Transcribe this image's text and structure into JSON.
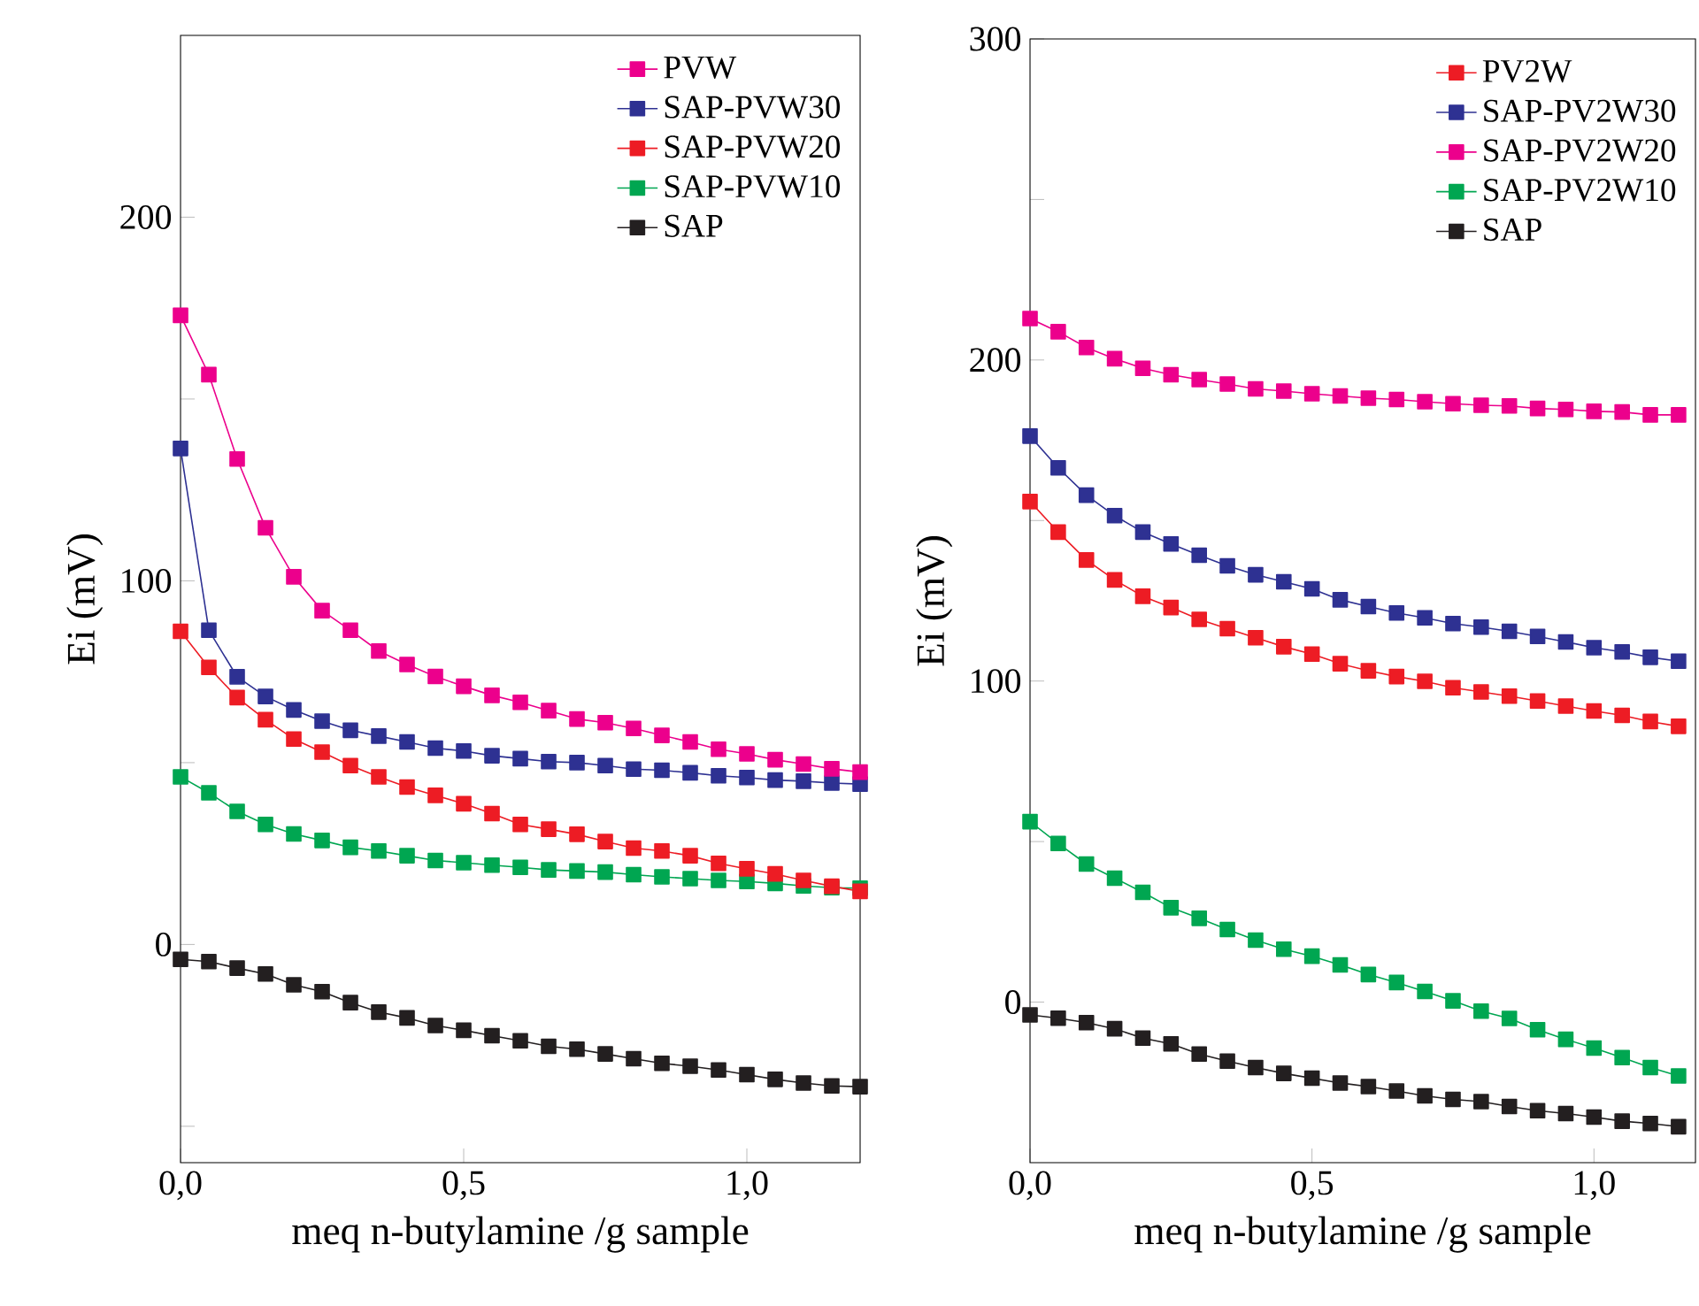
{
  "chart_data": [
    {
      "type": "line",
      "xlabel": "meq n-butylamine /g sample",
      "ylabel": "Ei (mV)",
      "marker": "square",
      "line_style": "solid",
      "legend": "top right",
      "x": [
        0,
        0.05,
        0.1,
        0.15,
        0.2,
        0.25,
        0.3,
        0.35,
        0.4,
        0.45,
        0.5,
        0.55,
        0.6,
        0.65,
        0.7,
        0.75,
        0.8,
        0.85,
        0.9,
        0.95,
        1.0,
        1.05,
        1.1,
        1.15,
        1.2
      ],
      "xlim": [
        0,
        1.2
      ],
      "ylim": [
        -60,
        250
      ],
      "xticks": [
        {
          "value": 0,
          "label": "0,0"
        },
        {
          "value": 0.5,
          "label": "0,5"
        },
        {
          "value": 1.0,
          "label": "1,0"
        }
      ],
      "yticks": [
        {
          "value": -50,
          "label": null
        },
        0,
        {
          "value": 50,
          "label": null
        },
        100,
        {
          "value": 150,
          "label": null
        },
        200
      ],
      "series": [
        {
          "name": "PVW",
          "color": "#ec008c",
          "values": [
            173.0,
            156.7,
            133.5,
            114.6,
            101.1,
            91.8,
            86.4,
            80.7,
            77.0,
            73.7,
            71.0,
            68.5,
            66.6,
            64.3,
            62.0,
            61.0,
            59.4,
            57.5,
            55.7,
            53.7,
            52.4,
            50.8,
            49.6,
            48.3,
            47.4
          ]
        },
        {
          "name": "SAP-PVW30",
          "color": "#2e3192",
          "values": [
            136.4,
            86.4,
            73.6,
            68.2,
            64.5,
            61.4,
            58.9,
            57.3,
            55.7,
            54.0,
            53.2,
            51.9,
            51.1,
            50.3,
            50.0,
            49.2,
            48.2,
            47.9,
            47.2,
            46.4,
            45.9,
            45.2,
            44.9,
            44.4,
            44.1
          ]
        },
        {
          "name": "SAP-PVW20",
          "color": "#ed1c24",
          "values": [
            86.1,
            76.2,
            67.9,
            61.8,
            56.5,
            52.9,
            49.2,
            46.1,
            43.3,
            41.0,
            38.7,
            36.0,
            33.0,
            31.7,
            30.3,
            28.3,
            26.5,
            25.7,
            24.4,
            22.3,
            20.8,
            19.4,
            17.6,
            16.0,
            14.6
          ]
        },
        {
          "name": "SAP-PVW10",
          "color": "#00a651",
          "values": [
            46.1,
            41.7,
            36.6,
            33.0,
            30.4,
            28.6,
            26.7,
            25.7,
            24.4,
            23.1,
            22.5,
            21.8,
            21.2,
            20.5,
            20.2,
            19.9,
            19.2,
            18.6,
            18.1,
            17.6,
            17.3,
            16.8,
            16.1,
            15.6,
            15.5
          ]
        },
        {
          "name": "SAP",
          "color": "#231f20",
          "values": [
            -4.1,
            -4.7,
            -6.5,
            -8.1,
            -11.1,
            -13.0,
            -16.0,
            -18.6,
            -20.2,
            -22.3,
            -23.6,
            -25.1,
            -26.5,
            -28.0,
            -28.8,
            -30.1,
            -31.4,
            -32.7,
            -33.5,
            -34.5,
            -35.8,
            -37.1,
            -38.1,
            -38.9,
            -39.1
          ]
        }
      ]
    },
    {
      "type": "line",
      "xlabel": "meq n-butylamine /g sample",
      "ylabel": "Ei (mV)",
      "marker": "square",
      "line_style": "solid",
      "legend": "top right",
      "x": [
        0,
        0.05,
        0.1,
        0.15,
        0.2,
        0.25,
        0.3,
        0.35,
        0.4,
        0.45,
        0.5,
        0.55,
        0.6,
        0.65,
        0.7,
        0.75,
        0.8,
        0.85,
        0.9,
        0.95,
        1.0,
        1.05,
        1.1,
        1.15
      ],
      "xlim": [
        0,
        1.18
      ],
      "ylim": [
        -50,
        300
      ],
      "xticks": [
        {
          "value": 0,
          "label": "0,0"
        },
        {
          "value": 0.5,
          "label": "0,5"
        },
        {
          "value": 1.0,
          "label": "1,0"
        }
      ],
      "yticks": [
        0,
        {
          "value": 50,
          "label": null
        },
        100,
        {
          "value": 150,
          "label": null
        },
        200,
        {
          "value": 250,
          "label": null
        },
        300
      ],
      "series": [
        {
          "name": "PV2W",
          "color": "#ed1c24",
          "values": [
            155.9,
            146.4,
            137.7,
            131.5,
            126.4,
            122.9,
            119.2,
            116.3,
            113.5,
            110.7,
            108.4,
            105.4,
            103.2,
            101.4,
            99.9,
            97.9,
            96.6,
            95.3,
            93.8,
            92.2,
            90.7,
            89.3,
            87.4,
            85.9
          ]
        },
        {
          "name": "SAP-PV2W30",
          "color": "#2e3192",
          "values": [
            176.3,
            166.4,
            157.9,
            151.5,
            146.4,
            142.7,
            139.2,
            135.9,
            133.1,
            130.9,
            128.7,
            125.3,
            123.2,
            121.2,
            119.7,
            117.9,
            116.8,
            115.5,
            113.9,
            112.2,
            110.4,
            109.1,
            107.4,
            106.2
          ]
        },
        {
          "name": "SAP-PV2W20",
          "color": "#ec008c",
          "values": [
            212.9,
            208.8,
            203.9,
            200.4,
            197.4,
            195.4,
            193.9,
            192.5,
            191.0,
            190.3,
            189.5,
            188.8,
            188.1,
            187.7,
            187.0,
            186.4,
            185.9,
            185.7,
            184.9,
            184.6,
            184.0,
            183.8,
            182.9,
            182.9
          ]
        },
        {
          "name": "SAP-PV2W10",
          "color": "#00a651",
          "values": [
            56.2,
            49.4,
            43.0,
            38.6,
            34.2,
            29.4,
            26.1,
            22.6,
            19.3,
            16.5,
            14.3,
            11.6,
            8.6,
            6.1,
            3.3,
            0.4,
            -2.8,
            -5.1,
            -8.6,
            -11.6,
            -14.3,
            -17.3,
            -20.4,
            -23.0
          ]
        },
        {
          "name": "SAP",
          "color": "#231f20",
          "values": [
            -4.0,
            -5.0,
            -6.4,
            -8.3,
            -11.2,
            -13.0,
            -16.2,
            -18.4,
            -20.4,
            -22.2,
            -23.7,
            -25.2,
            -26.3,
            -27.7,
            -29.2,
            -30.3,
            -31.0,
            -32.5,
            -33.8,
            -34.7,
            -35.8,
            -37.1,
            -37.8,
            -38.8
          ]
        }
      ]
    }
  ]
}
